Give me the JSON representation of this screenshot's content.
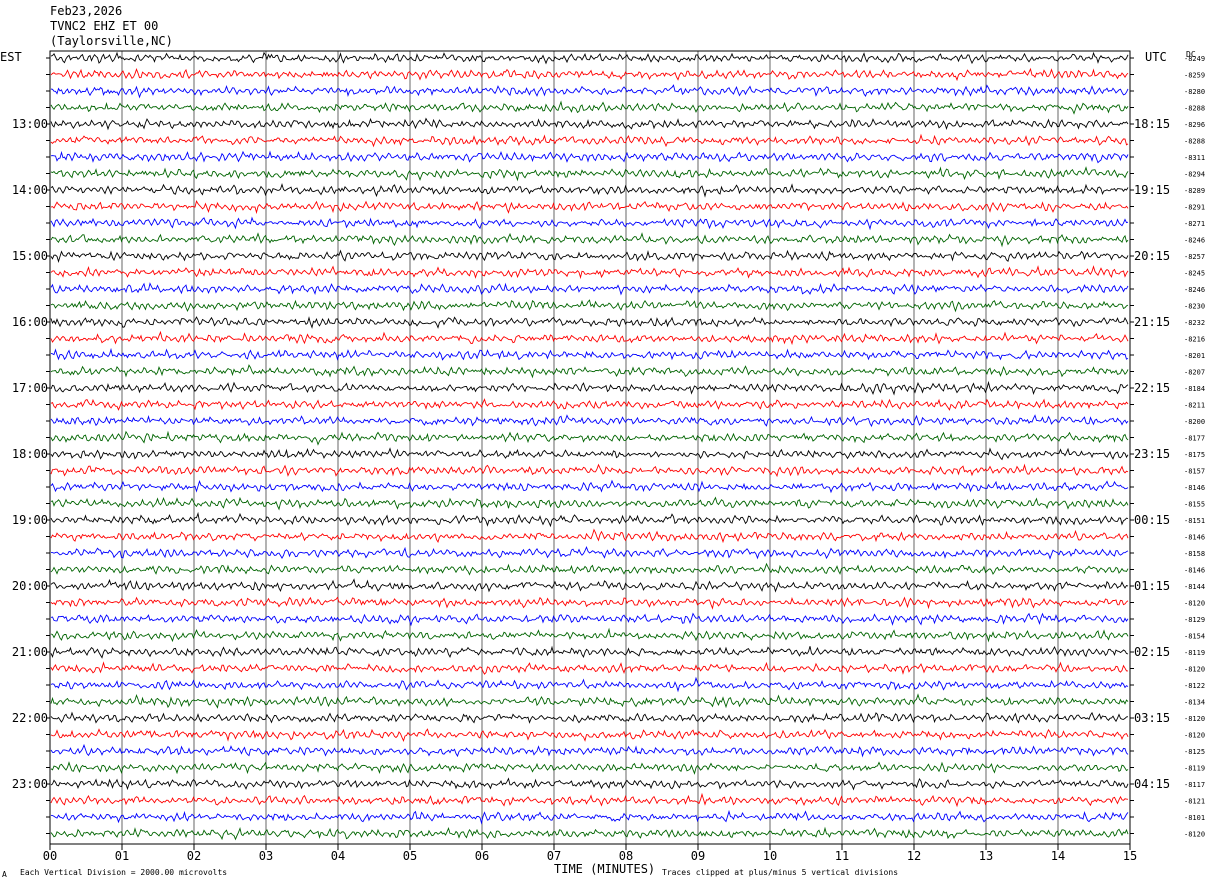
{
  "header": {
    "date": "Feb23,2026",
    "station": "TVNC2 EHZ ET 00",
    "location": "(Taylorsville,NC)"
  },
  "axes": {
    "left_tz": "EST",
    "right_tz": "UTC",
    "dc_label": "DC",
    "xlabel": "TIME (MINUTES)"
  },
  "footer": {
    "left_note": "Each Vertical Division = 2000.00 microvolts",
    "right_note": "Traces clipped at plus/minus 5 vertical divisions",
    "corner_mark": "A"
  },
  "chart_data": {
    "type": "line",
    "title": "TVNC2 EHZ ET 00 (Taylorsville,NC) Feb23,2026",
    "x_ticks": [
      "00",
      "01",
      "02",
      "03",
      "04",
      "05",
      "06",
      "07",
      "08",
      "09",
      "10",
      "11",
      "12",
      "13",
      "14",
      "15"
    ],
    "xlim": [
      0,
      15
    ],
    "trace_colors": [
      "#000000",
      "#ff0000",
      "#0000ff",
      "#006400"
    ],
    "rows_per_hour": 4,
    "left_hour_labels": [
      "13:00",
      "14:00",
      "15:00",
      "16:00",
      "17:00",
      "18:00",
      "19:00",
      "20:00",
      "21:00",
      "22:00",
      "23:00"
    ],
    "right_hour_labels": [
      "18:15",
      "19:15",
      "20:15",
      "21:15",
      "22:15",
      "23:15",
      "00:15",
      "01:15",
      "02:15",
      "03:15",
      "04:15"
    ],
    "dc_offsets": [
      "-8249",
      "-8259",
      "-8280",
      "-8288",
      "-8296",
      "-8288",
      "-8311",
      "-8294",
      "-8289",
      "-8291",
      "-8271",
      "-8246",
      "-8257",
      "-8245",
      "-8246",
      "-8230",
      "-8232",
      "-8216",
      "-8201",
      "-8207",
      "-8184",
      "-8211",
      "-8200",
      "-8177",
      "-8175",
      "-8157",
      "-8146",
      "-8155",
      "-8151",
      "-8146",
      "-8158",
      "-8146",
      "-8144",
      "-8120",
      "-8129",
      "-8154",
      "-8119",
      "-8120",
      "-8122",
      "-8134",
      "-8120",
      "-8120",
      "-8125",
      "-8119",
      "-8117",
      "-8121",
      "-8101",
      "-8120"
    ]
  }
}
